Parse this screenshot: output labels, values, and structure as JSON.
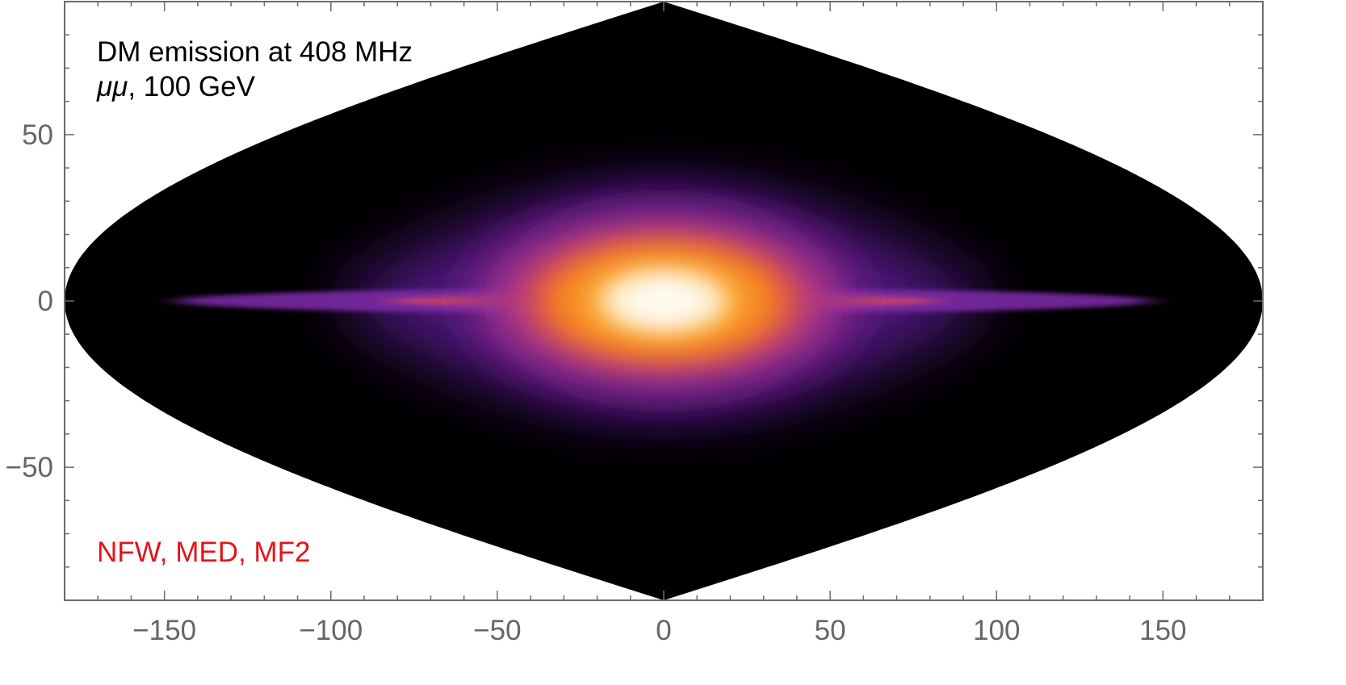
{
  "chart_data": {
    "type": "heatmap",
    "projection": "sinusoidal (equal-area) all-sky map, diamond-shaped footprint",
    "title": "",
    "xlabel": "",
    "ylabel": "",
    "xlim": [
      -180,
      180
    ],
    "ylim": [
      -90,
      90
    ],
    "xticks": [
      -150,
      -100,
      -50,
      0,
      50,
      100,
      150
    ],
    "yticks": [
      -50,
      0,
      50
    ],
    "x_tick_labels": [
      "−150",
      "−100",
      "−50",
      "0",
      "50",
      "100",
      "150"
    ],
    "y_tick_labels": [
      "−50",
      "0",
      "50"
    ],
    "grid": false,
    "colormap": "black-purple-orange-white (inferno-like)",
    "colormap_stops": [
      "#000000",
      "#3b0a6e",
      "#7d2fa5",
      "#d7485e",
      "#f57d1f",
      "#fbb033",
      "#fff3c8",
      "#ffffff"
    ],
    "peak": {
      "x": 0,
      "y": 0
    },
    "emission_features": [
      {
        "name": "central-bulge",
        "extent_x": 45,
        "extent_y": 22
      },
      {
        "name": "purple-halo",
        "extent_x": 100,
        "extent_y": 35
      },
      {
        "name": "galactic-plane-streak",
        "extent_x": 150,
        "extent_y": 2
      }
    ],
    "annotations": [
      {
        "text": "DM emission at 408 MHz",
        "color": "#000000",
        "position": "top-left"
      },
      {
        "text_channel": "μμ",
        "text_rest": ", 100 GeV",
        "color": "#000000",
        "position": "top-left"
      },
      {
        "text": "NFW, MED, MF2",
        "color": "#e0161b",
        "position": "bottom-left"
      }
    ]
  }
}
